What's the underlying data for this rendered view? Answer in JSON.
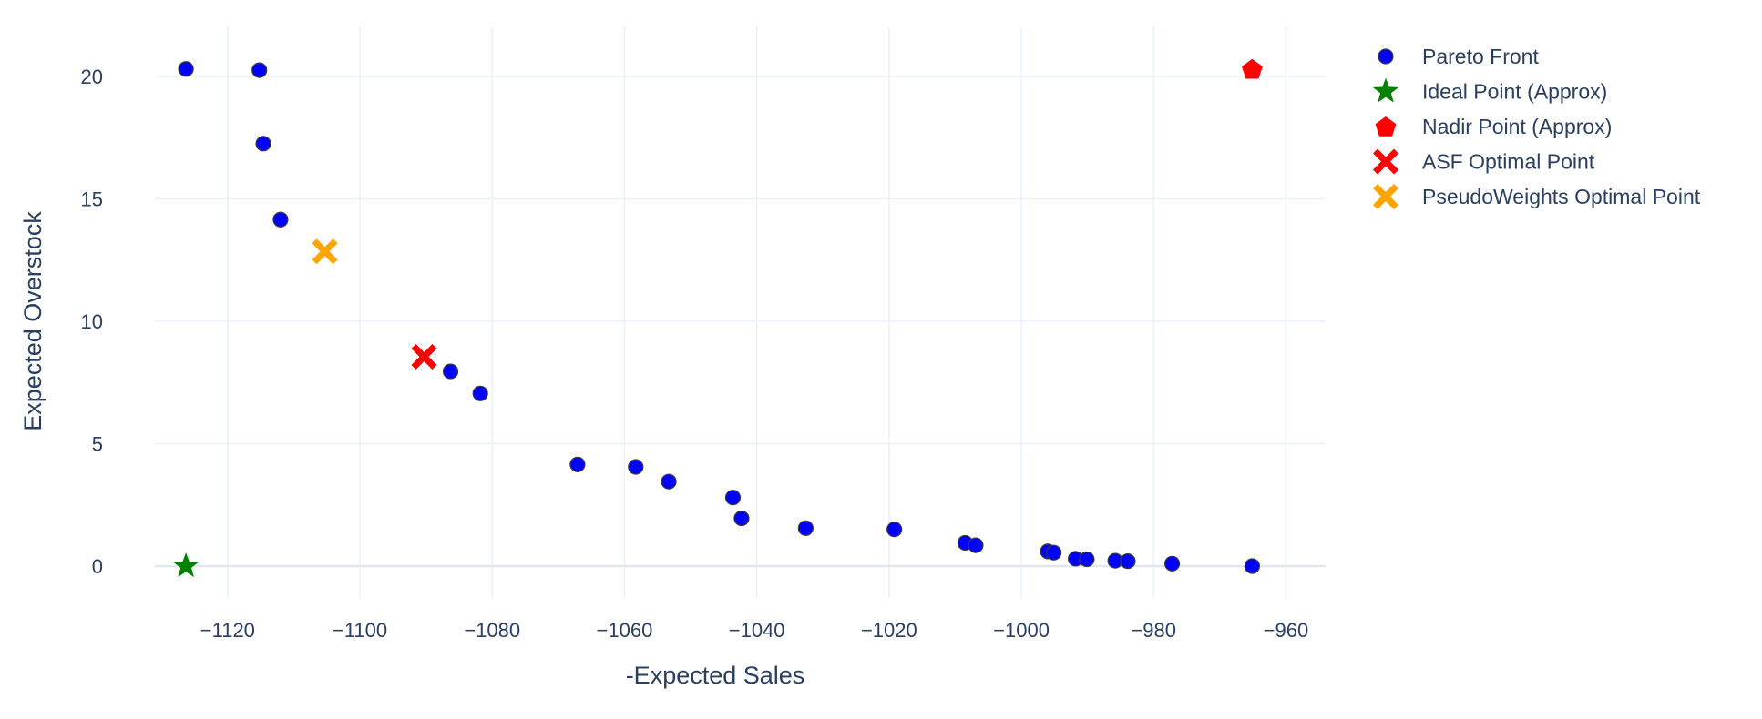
{
  "chart_data": {
    "type": "scatter",
    "xlabel": "-Expected Sales",
    "ylabel": "Expected Overstock",
    "xlim": [
      -1131,
      -954
    ],
    "ylim": [
      -1.3,
      22
    ],
    "xticks": [
      -1120,
      -1100,
      -1080,
      -1060,
      -1040,
      -1020,
      -1000,
      -980,
      -960
    ],
    "yticks": [
      0,
      5,
      10,
      15,
      20
    ],
    "grid": true,
    "legend_position": "right",
    "series": [
      {
        "name": "Pareto Front",
        "marker": "circle",
        "color": "#0000ff",
        "points": [
          {
            "x": -1126.3,
            "y": 20.3
          },
          {
            "x": -1115.2,
            "y": 20.25
          },
          {
            "x": -1114.6,
            "y": 17.25
          },
          {
            "x": -1112.0,
            "y": 14.15
          },
          {
            "x": -1086.3,
            "y": 7.95
          },
          {
            "x": -1081.8,
            "y": 7.05
          },
          {
            "x": -1067.1,
            "y": 4.15
          },
          {
            "x": -1058.3,
            "y": 4.05
          },
          {
            "x": -1053.3,
            "y": 3.45
          },
          {
            "x": -1043.6,
            "y": 2.8
          },
          {
            "x": -1042.3,
            "y": 1.95
          },
          {
            "x": -1032.6,
            "y": 1.55
          },
          {
            "x": -1019.2,
            "y": 1.5
          },
          {
            "x": -1008.5,
            "y": 0.95
          },
          {
            "x": -1006.9,
            "y": 0.85
          },
          {
            "x": -996.0,
            "y": 0.6
          },
          {
            "x": -995.1,
            "y": 0.55
          },
          {
            "x": -991.8,
            "y": 0.3
          },
          {
            "x": -990.1,
            "y": 0.28
          },
          {
            "x": -985.8,
            "y": 0.22
          },
          {
            "x": -983.9,
            "y": 0.2
          },
          {
            "x": -977.2,
            "y": 0.1
          },
          {
            "x": -965.1,
            "y": 0.0
          }
        ]
      },
      {
        "name": "Ideal Point (Approx)",
        "marker": "star",
        "color": "#008000",
        "points": [
          {
            "x": -1126.3,
            "y": 0.0
          }
        ]
      },
      {
        "name": "Nadir Point (Approx)",
        "marker": "pentagon",
        "color": "#ff0000",
        "points": [
          {
            "x": -965.1,
            "y": 20.3
          }
        ]
      },
      {
        "name": "ASF Optimal Point",
        "marker": "x",
        "color": "#ff0000",
        "points": [
          {
            "x": -1090.3,
            "y": 8.55
          }
        ]
      },
      {
        "name": "PseudoWeights  Optimal Point",
        "marker": "x",
        "color": "#ffa500",
        "points": [
          {
            "x": -1105.3,
            "y": 12.85
          }
        ]
      }
    ]
  }
}
